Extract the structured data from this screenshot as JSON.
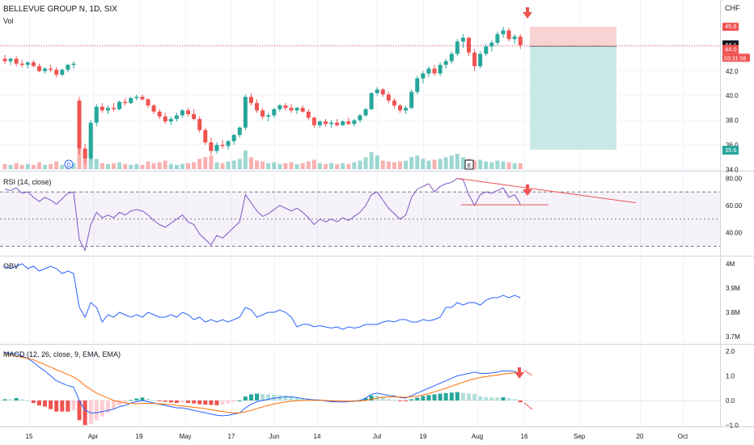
{
  "header": {
    "symbol_line": "BELLEVUE GROUP N, 1D, SIX",
    "volume_label": "Vol",
    "currency": "CHF"
  },
  "price_axis": {
    "ticks": [
      "34.0",
      "36.0",
      "38.0",
      "40.0",
      "42.0",
      "44.0"
    ],
    "badges": {
      "target_high": "45.6",
      "current": "44.1",
      "entry": "44.0",
      "countdown": "03:31:08",
      "stop_low": "35.6"
    }
  },
  "rsi_panel": {
    "label": "RSI (14, close)",
    "ticks": [
      "80.00",
      "60.00",
      "40.00"
    ]
  },
  "obv_panel": {
    "label": "OBV",
    "ticks": [
      "4M",
      "3.9M",
      "3.8M",
      "3.7M"
    ]
  },
  "macd_panel": {
    "label": "MACD (12, 26, close, 9, EMA, EMA)",
    "ticks": [
      "2.0",
      "1.0",
      "0.0",
      "−1.0"
    ]
  },
  "time_axis": {
    "ticks": [
      "15",
      "Apr",
      "19",
      "May",
      "17",
      "Jun",
      "14",
      "Jul",
      "19",
      "Aug",
      "16",
      "Sep",
      "20",
      "Oct"
    ]
  },
  "events": {
    "dividend": "D",
    "earnings": "E"
  },
  "colors": {
    "up": "#26a69a",
    "down": "#ef5350",
    "rsi_line": "#7e57c2",
    "obv_line": "#2962ff",
    "macd_line": "#2962ff",
    "signal_line": "#ff6d00",
    "trend_line": "#ef5350",
    "profit_zone": "#b2dfdb",
    "loss_zone": "#f8c8c8"
  },
  "chart_data": {
    "type": "candlestick",
    "price_range": [
      33.6,
      46.8
    ],
    "current_price": 44.1,
    "position": {
      "entry": 44.0,
      "target_high": 45.6,
      "stop_low": 35.6
    },
    "candles": [
      [
        43.0,
        43.3,
        42.6,
        42.8
      ],
      [
        42.8,
        43.1,
        42.5,
        43.0
      ],
      [
        43.0,
        43.2,
        42.4,
        42.6
      ],
      [
        42.6,
        42.9,
        42.3,
        42.5
      ],
      [
        42.5,
        42.8,
        42.2,
        42.7
      ],
      [
        42.7,
        42.9,
        42.3,
        42.4
      ],
      [
        42.4,
        42.6,
        41.9,
        42.0
      ],
      [
        42.0,
        42.3,
        41.8,
        42.2
      ],
      [
        42.2,
        42.5,
        41.9,
        42.1
      ],
      [
        42.1,
        42.3,
        41.5,
        41.7
      ],
      [
        41.7,
        42.2,
        41.6,
        42.1
      ],
      [
        42.1,
        42.6,
        41.9,
        42.5
      ],
      [
        42.5,
        42.8,
        42.2,
        42.6
      ],
      [
        39.6,
        39.9,
        35.2,
        35.7
      ],
      [
        35.7,
        36.1,
        34.5,
        34.9
      ],
      [
        34.9,
        38.0,
        34.7,
        37.8
      ],
      [
        37.8,
        39.3,
        37.5,
        39.1
      ],
      [
        39.1,
        39.4,
        38.6,
        38.8
      ],
      [
        38.8,
        39.2,
        38.5,
        39.0
      ],
      [
        39.0,
        39.4,
        38.7,
        38.9
      ],
      [
        38.9,
        39.6,
        38.8,
        39.5
      ],
      [
        39.5,
        39.8,
        39.2,
        39.4
      ],
      [
        39.4,
        39.9,
        39.3,
        39.8
      ],
      [
        39.8,
        40.1,
        39.6,
        39.9
      ],
      [
        39.9,
        40.1,
        39.6,
        39.7
      ],
      [
        39.7,
        39.8,
        39.0,
        39.2
      ],
      [
        39.2,
        39.3,
        38.5,
        38.7
      ],
      [
        38.7,
        38.9,
        38.1,
        38.3
      ],
      [
        38.3,
        38.6,
        37.7,
        37.9
      ],
      [
        37.9,
        38.3,
        37.6,
        38.1
      ],
      [
        38.1,
        38.6,
        37.9,
        38.4
      ],
      [
        38.4,
        38.9,
        38.2,
        38.8
      ],
      [
        38.8,
        39.0,
        38.3,
        38.5
      ],
      [
        38.5,
        38.9,
        38.0,
        38.1
      ],
      [
        38.1,
        38.3,
        37.0,
        37.2
      ],
      [
        37.2,
        37.4,
        36.0,
        36.2
      ],
      [
        36.2,
        36.6,
        35.2,
        35.5
      ],
      [
        35.5,
        36.2,
        35.3,
        36.0
      ],
      [
        36.0,
        36.4,
        35.7,
        35.9
      ],
      [
        35.9,
        36.4,
        35.6,
        36.3
      ],
      [
        36.3,
        36.9,
        36.0,
        36.8
      ],
      [
        36.8,
        37.5,
        36.6,
        37.4
      ],
      [
        37.4,
        40.1,
        37.2,
        39.9
      ],
      [
        39.9,
        40.2,
        39.2,
        39.4
      ],
      [
        39.4,
        39.7,
        38.6,
        38.8
      ],
      [
        38.8,
        39.0,
        38.1,
        38.3
      ],
      [
        38.3,
        38.6,
        37.9,
        38.4
      ],
      [
        38.4,
        39.0,
        38.2,
        38.9
      ],
      [
        38.9,
        39.3,
        38.7,
        39.2
      ],
      [
        39.2,
        39.4,
        38.8,
        39.0
      ],
      [
        39.0,
        39.3,
        38.6,
        38.8
      ],
      [
        38.8,
        39.1,
        38.5,
        39.0
      ],
      [
        39.0,
        39.2,
        38.6,
        38.7
      ],
      [
        38.7,
        38.9,
        38.0,
        38.2
      ],
      [
        38.2,
        38.3,
        37.4,
        37.6
      ],
      [
        37.6,
        38.0,
        37.4,
        37.9
      ],
      [
        37.9,
        38.1,
        37.5,
        37.7
      ],
      [
        37.7,
        38.0,
        37.4,
        37.8
      ],
      [
        37.8,
        38.1,
        37.5,
        37.6
      ],
      [
        37.6,
        38.0,
        37.5,
        37.9
      ],
      [
        37.9,
        38.2,
        37.6,
        37.7
      ],
      [
        37.7,
        38.1,
        37.5,
        38.0
      ],
      [
        38.0,
        38.5,
        37.8,
        38.4
      ],
      [
        38.4,
        39.0,
        38.3,
        38.9
      ],
      [
        38.9,
        40.3,
        38.8,
        40.2
      ],
      [
        40.2,
        40.7,
        40.0,
        40.5
      ],
      [
        40.5,
        40.6,
        39.9,
        40.1
      ],
      [
        40.1,
        40.3,
        39.4,
        39.6
      ],
      [
        39.6,
        39.8,
        39.0,
        39.2
      ],
      [
        39.2,
        39.3,
        38.6,
        38.8
      ],
      [
        38.8,
        39.2,
        38.5,
        39.0
      ],
      [
        39.0,
        40.5,
        38.9,
        40.3
      ],
      [
        40.3,
        41.6,
        40.1,
        41.4
      ],
      [
        41.4,
        42.0,
        41.0,
        41.8
      ],
      [
        41.8,
        42.4,
        41.5,
        42.2
      ],
      [
        42.2,
        42.5,
        41.6,
        41.8
      ],
      [
        41.8,
        42.7,
        41.6,
        42.5
      ],
      [
        42.5,
        43.0,
        42.2,
        42.8
      ],
      [
        42.8,
        43.6,
        42.6,
        43.4
      ],
      [
        43.4,
        44.6,
        43.2,
        44.4
      ],
      [
        44.4,
        45.0,
        43.9,
        44.7
      ],
      [
        44.7,
        44.8,
        43.2,
        43.5
      ],
      [
        43.5,
        43.8,
        42.0,
        42.4
      ],
      [
        42.4,
        43.6,
        42.2,
        43.4
      ],
      [
        43.4,
        44.2,
        43.2,
        44.0
      ],
      [
        44.0,
        44.5,
        43.6,
        44.3
      ],
      [
        44.3,
        45.2,
        44.1,
        45.0
      ],
      [
        45.0,
        45.6,
        44.7,
        45.3
      ],
      [
        45.3,
        45.5,
        44.4,
        44.6
      ],
      [
        44.6,
        45.0,
        44.2,
        44.8
      ],
      [
        44.8,
        45.0,
        43.8,
        44.1
      ]
    ],
    "volume": [
      6,
      5,
      7,
      5,
      6,
      5,
      8,
      5,
      6,
      9,
      5,
      6,
      7,
      36,
      16,
      40,
      12,
      7,
      6,
      7,
      8,
      6,
      5,
      6,
      5,
      9,
      7,
      8,
      10,
      6,
      5,
      6,
      7,
      8,
      12,
      14,
      16,
      8,
      7,
      9,
      10,
      12,
      22,
      14,
      10,
      9,
      7,
      8,
      6,
      7,
      8,
      6,
      7,
      9,
      11,
      7,
      6,
      7,
      6,
      7,
      6,
      8,
      10,
      14,
      20,
      16,
      10,
      9,
      8,
      9,
      10,
      14,
      16,
      12,
      10,
      11,
      12,
      14,
      16,
      18,
      14,
      12,
      10,
      11,
      9,
      8,
      10,
      9,
      8,
      7,
      7
    ],
    "rsi": [
      72,
      71,
      73,
      69,
      70,
      66,
      63,
      66,
      64,
      61,
      65,
      69,
      70,
      35,
      27,
      46,
      55,
      51,
      53,
      51,
      55,
      53,
      56,
      57,
      56,
      53,
      49,
      46,
      44,
      47,
      50,
      53,
      48,
      46,
      39,
      35,
      31,
      38,
      36,
      40,
      44,
      48,
      68,
      62,
      56,
      52,
      54,
      57,
      60,
      58,
      56,
      58,
      55,
      51,
      46,
      50,
      48,
      50,
      48,
      51,
      49,
      52,
      55,
      60,
      68,
      70,
      64,
      58,
      54,
      50,
      53,
      66,
      72,
      74,
      76,
      70,
      74,
      76,
      77,
      80,
      79,
      68,
      60,
      68,
      70,
      69,
      71,
      73,
      66,
      68,
      61
    ],
    "rsi_levels": [
      70,
      50,
      30
    ],
    "obv": [
      3.99,
      3.98,
      3.99,
      4.0,
      3.98,
      3.99,
      3.97,
      3.98,
      3.99,
      3.98,
      3.96,
      3.97,
      3.96,
      3.82,
      3.78,
      3.84,
      3.82,
      3.76,
      3.79,
      3.78,
      3.8,
      3.79,
      3.78,
      3.79,
      3.78,
      3.8,
      3.79,
      3.78,
      3.78,
      3.79,
      3.78,
      3.8,
      3.79,
      3.77,
      3.78,
      3.76,
      3.77,
      3.76,
      3.77,
      3.76,
      3.77,
      3.78,
      3.82,
      3.81,
      3.78,
      3.79,
      3.8,
      3.8,
      3.81,
      3.8,
      3.78,
      3.74,
      3.75,
      3.75,
      3.74,
      3.745,
      3.74,
      3.735,
      3.74,
      3.73,
      3.74,
      3.735,
      3.74,
      3.75,
      3.75,
      3.75,
      3.76,
      3.765,
      3.76,
      3.77,
      3.77,
      3.76,
      3.76,
      3.77,
      3.765,
      3.77,
      3.78,
      3.82,
      3.82,
      3.84,
      3.83,
      3.84,
      3.84,
      3.83,
      3.85,
      3.86,
      3.86,
      3.87,
      3.86,
      3.87,
      3.86
    ],
    "macd_line": [
      1.95,
      1.9,
      1.9,
      1.8,
      1.7,
      1.55,
      1.35,
      1.2,
      1.0,
      0.8,
      0.7,
      0.6,
      0.55,
      0.0,
      -0.4,
      -0.5,
      -0.5,
      -0.45,
      -0.4,
      -0.35,
      -0.25,
      -0.2,
      -0.1,
      -0.05,
      0.0,
      -0.05,
      -0.1,
      -0.15,
      -0.2,
      -0.25,
      -0.3,
      -0.3,
      -0.35,
      -0.4,
      -0.45,
      -0.5,
      -0.55,
      -0.6,
      -0.62,
      -0.6,
      -0.55,
      -0.5,
      -0.3,
      -0.15,
      -0.05,
      0.0,
      0.05,
      0.1,
      0.12,
      0.15,
      0.15,
      0.12,
      0.08,
      0.05,
      0.03,
      0.02,
      -0.02,
      -0.05,
      -0.05,
      -0.06,
      -0.05,
      -0.03,
      0.0,
      0.1,
      0.25,
      0.3,
      0.25,
      0.2,
      0.18,
      0.12,
      0.1,
      0.2,
      0.3,
      0.4,
      0.5,
      0.6,
      0.7,
      0.8,
      0.9,
      1.0,
      1.05,
      1.1,
      1.15,
      1.1,
      1.1,
      1.12,
      1.15,
      1.2,
      1.2,
      1.18,
      1.05
    ],
    "signal_line": [
      1.9,
      1.85,
      1.8,
      1.75,
      1.7,
      1.65,
      1.55,
      1.45,
      1.35,
      1.25,
      1.15,
      1.05,
      0.95,
      0.8,
      0.6,
      0.45,
      0.3,
      0.2,
      0.1,
      0.0,
      -0.05,
      -0.1,
      -0.12,
      -0.13,
      -0.12,
      -0.12,
      -0.12,
      -0.13,
      -0.15,
      -0.17,
      -0.2,
      -0.22,
      -0.25,
      -0.28,
      -0.3,
      -0.33,
      -0.37,
      -0.41,
      -0.45,
      -0.48,
      -0.5,
      -0.5,
      -0.46,
      -0.4,
      -0.33,
      -0.26,
      -0.2,
      -0.14,
      -0.1,
      -0.06,
      -0.03,
      -0.01,
      0.0,
      0.01,
      0.01,
      0.01,
      0.0,
      -0.01,
      -0.02,
      -0.03,
      -0.03,
      -0.03,
      -0.02,
      0.0,
      0.05,
      0.1,
      0.13,
      0.14,
      0.15,
      0.14,
      0.13,
      0.15,
      0.18,
      0.22,
      0.28,
      0.35,
      0.42,
      0.5,
      0.58,
      0.66,
      0.74,
      0.82,
      0.88,
      0.93,
      0.97,
      1.0,
      1.03,
      1.07,
      1.1,
      1.12,
      1.12
    ],
    "x_labels_count": 14
  }
}
